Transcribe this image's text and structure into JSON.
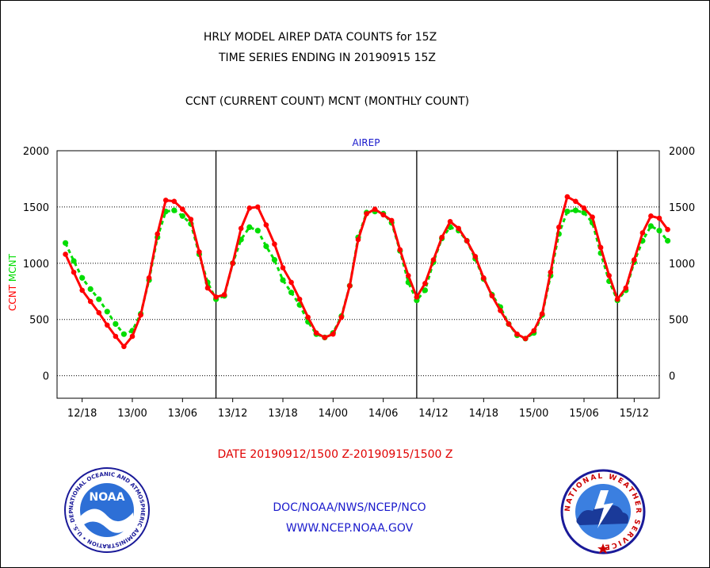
{
  "header": {
    "title_line1": "HRLY MODEL AIREP DATA COUNTS for 15Z",
    "title_line2": "TIME SERIES ENDING IN 20190915 15Z",
    "subtitle": "CCNT (CURRENT COUNT) MCNT (MONTHLY COUNT)"
  },
  "footer": {
    "date_range": "DATE 20190912/1500 Z-20190915/1500 Z",
    "org": "DOC/NOAA/NWS/NCEP/NCO",
    "url": "WWW.NCEP.NOAA.GOV"
  },
  "logos": {
    "noaa_text": "NOAA",
    "noaa_ring": "NATIONAL OCEANIC AND ATMOSPHERIC ADMINISTRATION • U.S. DEPARTMENT OF COMMERCE •",
    "nws_ring": "NATIONAL WEATHER SERVICE"
  },
  "colors": {
    "ccnt": "#ff0000",
    "mcnt": "#00dd00",
    "panel_title": "#1a1acc",
    "footer_link": "#1a1acc"
  },
  "chart_data": {
    "type": "line",
    "panel_title": "AIREP",
    "ylabel_parts": [
      {
        "text": "CCNT",
        "color": "#ff0000"
      },
      {
        "text": "MCNT",
        "color": "#00dd00"
      }
    ],
    "ylim": [
      -200,
      2000
    ],
    "yticks": [
      0,
      500,
      1000,
      1500,
      2000
    ],
    "x_start": "2019-09-12 15:00",
    "x_end": "2019-09-15 15:00",
    "xlim_hours": [
      -3,
      69
    ],
    "xticks": [
      {
        "hour": 0,
        "label": "12/18"
      },
      {
        "hour": 6,
        "label": "13/00"
      },
      {
        "hour": 12,
        "label": "13/06"
      },
      {
        "hour": 18,
        "label": "13/12"
      },
      {
        "hour": 24,
        "label": "13/18"
      },
      {
        "hour": 30,
        "label": "14/00"
      },
      {
        "hour": 36,
        "label": "14/06"
      },
      {
        "hour": 42,
        "label": "14/12"
      },
      {
        "hour": 48,
        "label": "14/18"
      },
      {
        "hour": 54,
        "label": "15/00"
      },
      {
        "hour": 60,
        "label": "15/06"
      },
      {
        "hour": 66,
        "label": "15/12"
      }
    ],
    "day_boundaries_hours": [
      16,
      40,
      64
    ],
    "grid": true,
    "series": [
      {
        "name": "CCNT",
        "color": "#ff0000",
        "values": [
          1080,
          920,
          760,
          660,
          560,
          450,
          350,
          260,
          350,
          540,
          870,
          1260,
          1560,
          1550,
          1480,
          1390,
          1100,
          780,
          700,
          720,
          1000,
          1310,
          1490,
          1500,
          1340,
          1170,
          960,
          830,
          680,
          520,
          380,
          340,
          370,
          520,
          800,
          1210,
          1440,
          1480,
          1430,
          1380,
          1120,
          890,
          700,
          820,
          1030,
          1230,
          1370,
          1310,
          1200,
          1060,
          870,
          710,
          580,
          460,
          370,
          330,
          400,
          550,
          920,
          1320,
          1590,
          1550,
          1490,
          1410,
          1140,
          890,
          680,
          780,
          1030,
          1270,
          1420,
          1400,
          1300
        ]
      },
      {
        "name": "MCNT",
        "color": "#00dd00",
        "values": [
          1180,
          1020,
          870,
          770,
          680,
          570,
          460,
          370,
          400,
          550,
          850,
          1230,
          1460,
          1470,
          1420,
          1350,
          1080,
          830,
          680,
          710,
          1000,
          1210,
          1320,
          1290,
          1150,
          1030,
          850,
          740,
          630,
          480,
          370,
          340,
          380,
          530,
          800,
          1230,
          1450,
          1460,
          1440,
          1360,
          1110,
          830,
          670,
          760,
          1010,
          1220,
          1320,
          1290,
          1200,
          1040,
          860,
          720,
          610,
          460,
          360,
          330,
          380,
          540,
          890,
          1260,
          1460,
          1470,
          1450,
          1360,
          1090,
          840,
          670,
          760,
          1010,
          1200,
          1330,
          1290,
          1200
        ]
      }
    ]
  }
}
